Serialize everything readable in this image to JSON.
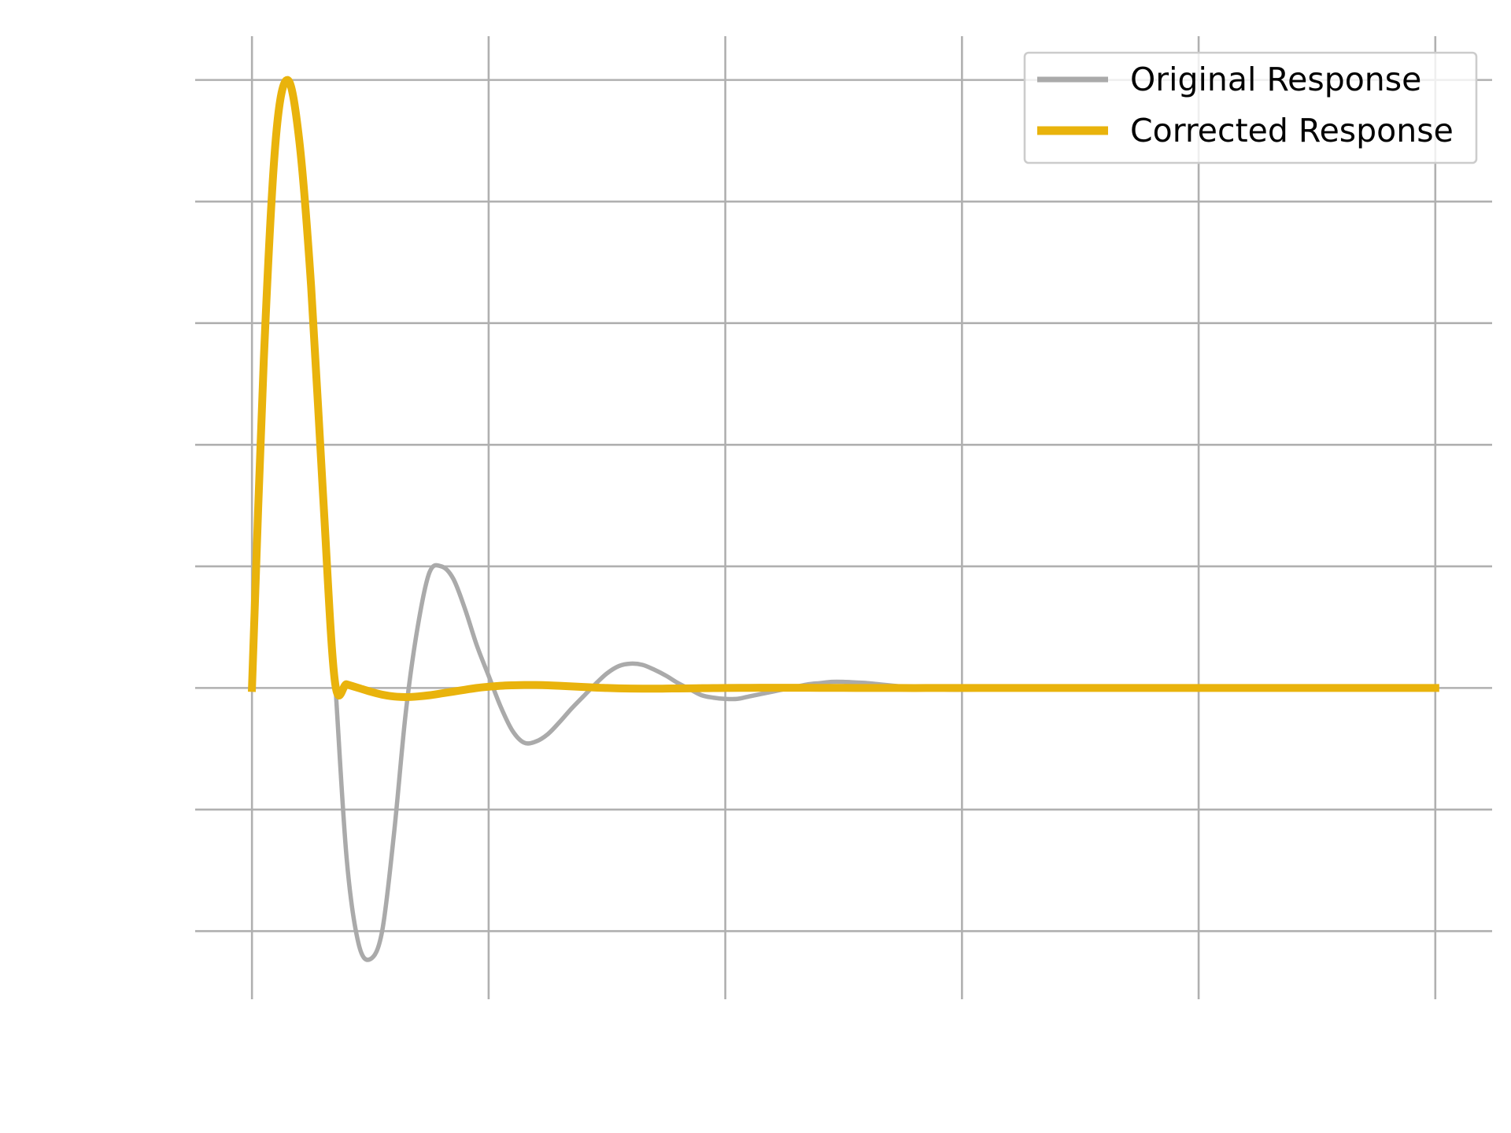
{
  "chart_data": {
    "type": "line",
    "title": "",
    "xlabel": "",
    "ylabel": "",
    "xlim": [
      -0.24,
      5.24
    ],
    "ylim": [
      -2.56,
      5.36
    ],
    "xticks": [
      0,
      1,
      2,
      3,
      4,
      5
    ],
    "yticks": [
      -2,
      -1,
      0,
      1,
      2,
      3,
      4,
      5
    ],
    "grid": true,
    "legend": {
      "placement": "top-right",
      "entries": [
        "Original Response",
        "Corrected Response"
      ]
    },
    "series": [
      {
        "name": "Original Response",
        "color": "#aaaaaa",
        "x": [
          0,
          0.05,
          0.1,
          0.15,
          0.2,
          0.25,
          0.3,
          0.35,
          0.4,
          0.45,
          0.5,
          0.55,
          0.6,
          0.65,
          0.7,
          0.75,
          0.8,
          0.85,
          0.9,
          0.95,
          1.0,
          1.05,
          1.1,
          1.15,
          1.2,
          1.25,
          1.3,
          1.35,
          1.4,
          1.45,
          1.5,
          1.55,
          1.6,
          1.65,
          1.7,
          1.75,
          1.8,
          1.85,
          1.9,
          1.95,
          2.0,
          2.05,
          2.1,
          2.15,
          2.2,
          2.25,
          2.3,
          2.35,
          2.4,
          2.45,
          2.5,
          2.55,
          2.6,
          2.65,
          2.7,
          2.75,
          2.8,
          2.85,
          2.9,
          2.95,
          3.0,
          3.1,
          3.2,
          3.3,
          3.4,
          3.5,
          3.6,
          3.7,
          3.8,
          3.9,
          4.0,
          4.1,
          4.2,
          4.3,
          4.4,
          4.5,
          4.6,
          4.7,
          4.8,
          4.9,
          5.0
        ],
        "values": [
          0,
          2.7,
          4.5,
          5.0,
          4.5,
          3.3,
          1.6,
          0.1,
          -1.4,
          -2.1,
          -2.23,
          -2.0,
          -1.2,
          -0.2,
          0.5,
          0.95,
          1.0,
          0.9,
          0.65,
          0.35,
          0.1,
          -0.15,
          -0.35,
          -0.45,
          -0.44,
          -0.38,
          -0.28,
          -0.17,
          -0.07,
          0.03,
          0.12,
          0.18,
          0.2,
          0.19,
          0.15,
          0.1,
          0.04,
          -0.01,
          -0.06,
          -0.08,
          -0.09,
          -0.09,
          -0.07,
          -0.05,
          -0.03,
          -0.01,
          0.01,
          0.03,
          0.04,
          0.05,
          0.05,
          0.045,
          0.04,
          0.03,
          0.02,
          0.01,
          0.0,
          -0.005,
          -0.01,
          -0.015,
          -0.015,
          -0.01,
          -0.005,
          0.0,
          0.005,
          0.007,
          0.006,
          0.004,
          0.002,
          0.0,
          -0.001,
          -0.002,
          -0.002,
          -0.001,
          0.0,
          0.001,
          0.001,
          0.0,
          0.0,
          0.0,
          0.0
        ]
      },
      {
        "name": "Corrected Response",
        "color": "#e9b30c",
        "x": [
          0,
          0.05,
          0.1,
          0.15,
          0.2,
          0.25,
          0.3,
          0.35,
          0.4,
          0.45,
          0.5,
          0.55,
          0.6,
          0.65,
          0.7,
          0.75,
          0.8,
          0.85,
          0.9,
          0.95,
          1.0,
          1.05,
          1.1,
          1.15,
          1.2,
          1.25,
          1.3,
          1.35,
          1.4,
          1.45,
          1.5,
          1.55,
          1.6,
          1.65,
          1.7,
          1.75,
          1.8,
          1.85,
          1.9,
          1.95,
          2.0,
          2.1,
          2.2,
          2.3,
          2.4,
          2.5,
          2.6,
          2.7,
          2.8,
          2.9,
          3.0,
          3.2,
          3.4,
          3.6,
          3.8,
          4.0,
          4.2,
          4.4,
          4.6,
          4.8,
          5.0
        ],
        "values": [
          0,
          2.7,
          4.5,
          5.0,
          4.5,
          3.3,
          1.6,
          0.06,
          0.03,
          0.0,
          -0.03,
          -0.055,
          -0.07,
          -0.075,
          -0.07,
          -0.06,
          -0.045,
          -0.03,
          -0.015,
          0.0,
          0.01,
          0.018,
          0.022,
          0.024,
          0.024,
          0.022,
          0.018,
          0.013,
          0.008,
          0.003,
          0.0,
          -0.003,
          -0.005,
          -0.006,
          -0.006,
          -0.005,
          -0.004,
          -0.003,
          -0.002,
          -0.001,
          0.0,
          0.001,
          0.0015,
          0.0015,
          0.001,
          0.0005,
          0.0,
          -0.0003,
          -0.0005,
          -0.0004,
          -0.0002,
          0.0,
          0.0001,
          0.0001,
          0.0,
          0.0,
          0.0,
          0.0,
          0.0,
          0.0,
          0.0
        ]
      }
    ]
  }
}
